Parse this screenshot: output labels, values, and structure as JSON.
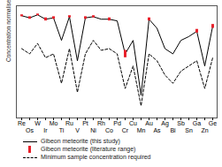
{
  "chart_data": {
    "type": "line",
    "y_label": "Concentration normalised to CI chondrite",
    "log": "y",
    "ylim": [
      1e-05,
      30
    ],
    "tick_labels": "x",
    "legend": "bottom",
    "categories": [
      "Re",
      "Os",
      "W",
      "Ir",
      "Mo",
      "Ti",
      "Ru",
      "V",
      "Pt",
      "Ni",
      "Rh",
      "Co",
      "Pd",
      "Cr",
      "Cu",
      "Mn",
      "Au",
      "As",
      "Ag",
      "Bi",
      "Sb",
      "Sn",
      "Ga",
      "Zn",
      "Ge"
    ],
    "series": [
      {
        "name": "Gibeon meteorite (this study)",
        "color": "#000000",
        "type": "line",
        "line_style": "solid",
        "values": [
          8,
          6,
          9,
          5,
          6,
          0.3,
          7,
          0.02,
          6,
          7,
          5,
          5,
          4,
          0.05,
          0.3,
          0.0002,
          5,
          1.5,
          0.1,
          0.05,
          0.3,
          0.5,
          1,
          0.01,
          2
        ]
      },
      {
        "name": "Gibeon meteorite (literature range)",
        "color": "#e8202a",
        "type": "range",
        "low": [
          7,
          5,
          8,
          4,
          5,
          null,
          6,
          null,
          5,
          6,
          null,
          4,
          null,
          0.03,
          null,
          null,
          4,
          null,
          null,
          null,
          null,
          null,
          0.8,
          null,
          1.5
        ],
        "high": [
          9,
          7,
          10,
          6,
          7,
          null,
          8,
          null,
          7,
          8,
          null,
          6,
          null,
          0.08,
          null,
          null,
          6,
          null,
          null,
          null,
          null,
          null,
          1.3,
          null,
          2.5
        ]
      },
      {
        "name": "Minimum sample concentration required",
        "color": "#000000",
        "type": "line",
        "line_style": "dashed",
        "values": [
          0.1,
          0.05,
          0.2,
          0.03,
          0.05,
          0.001,
          0.1,
          0.0003,
          0.05,
          0.3,
          0.08,
          0.1,
          0.05,
          0.0005,
          0.01,
          5e-05,
          0.05,
          0.02,
          0.003,
          0.001,
          0.005,
          0.01,
          0.02,
          0.0005,
          0.03
        ]
      }
    ]
  }
}
